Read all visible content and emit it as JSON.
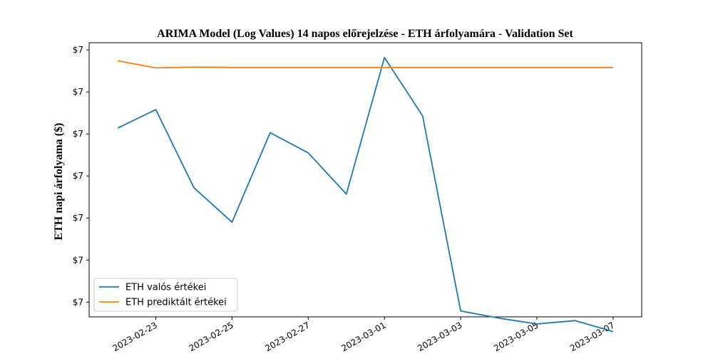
{
  "chart_data": {
    "type": "line",
    "title": "ARIMA Model (Log Values) 14 napos előrejelzése - ETH árfolyamára - Validation Set",
    "xlabel": "",
    "ylabel": "ETH napi árfolyama ($)",
    "x": [
      "2023-02-22",
      "2023-02-23",
      "2023-02-24",
      "2023-02-25",
      "2023-02-26",
      "2023-02-27",
      "2023-02-28",
      "2023-03-01",
      "2023-03-02",
      "2023-03-03",
      "2023-03-04",
      "2023-03-05",
      "2023-03-06",
      "2023-03-07"
    ],
    "xticks": [
      "2023-02-23",
      "2023-02-25",
      "2023-02-27",
      "2023-03-01",
      "2023-03-03",
      "2023-03-05",
      "2023-03-07"
    ],
    "yticks": [
      "$7",
      "$7",
      "$7",
      "$7",
      "$7",
      "$7",
      "$7"
    ],
    "ytick_values": [
      7.0,
      7.01,
      7.02,
      7.03,
      7.04,
      7.05,
      7.06
    ],
    "ylim": [
      6.9965,
      7.0617
    ],
    "xlim": [
      "2023-02-21T06:00",
      "2023-03-07T18:00"
    ],
    "grid": false,
    "legend_position": "lower-left",
    "series": [
      {
        "name": "ETH valós értékei",
        "color": "#1f77b4",
        "values": [
          7.0414,
          7.0458,
          7.0272,
          7.019,
          7.0403,
          7.0355,
          7.0257,
          7.0582,
          7.0443,
          6.9979,
          6.9962,
          6.9948,
          6.9956,
          6.993
        ]
      },
      {
        "name": "ETH prediktált értékei",
        "color": "#ff7f0e",
        "values": [
          7.0574,
          7.0557,
          7.0559,
          7.0558,
          7.0558,
          7.0558,
          7.0558,
          7.0558,
          7.0558,
          7.0558,
          7.0558,
          7.0558,
          7.0558,
          7.0558
        ]
      }
    ]
  }
}
